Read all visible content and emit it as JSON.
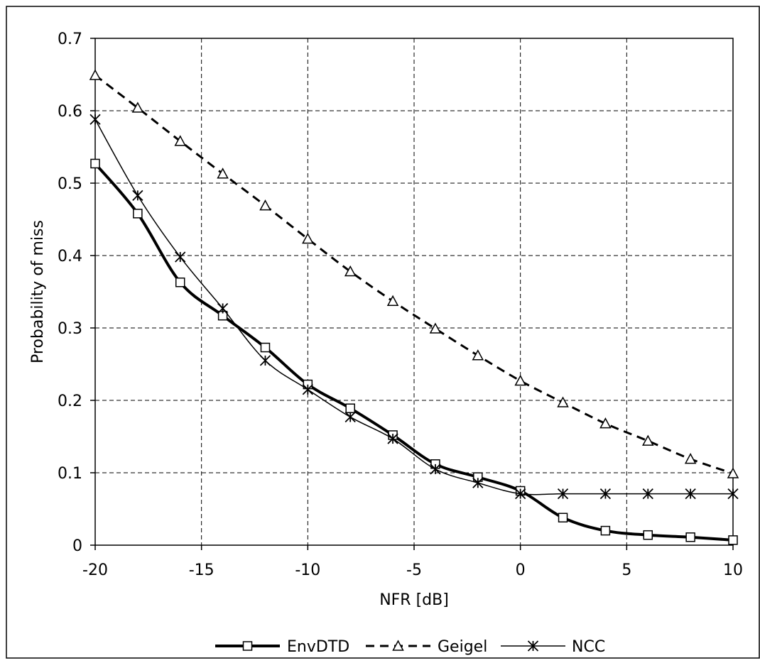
{
  "chart_data": {
    "type": "line",
    "title": "",
    "xlabel": "NFR [dB]",
    "ylabel": "Probability of miss",
    "xlim": [
      -20,
      10
    ],
    "ylim": [
      0,
      0.7
    ],
    "grid": true,
    "legend_position": "bottom",
    "xticks": [
      -20,
      -15,
      -10,
      -5,
      0,
      5,
      10
    ],
    "xtick_labels": [
      "-20",
      "-15",
      "-10",
      "-5",
      "0",
      "5",
      "10"
    ],
    "yticks": [
      0,
      0.1,
      0.2,
      0.3,
      0.4,
      0.5,
      0.6,
      0.7
    ],
    "ytick_labels": [
      "0",
      "0.1",
      "0.2",
      "0.3",
      "0.4",
      "0.5",
      "0.6",
      "0.7"
    ],
    "series": [
      {
        "name": "EnvDTD",
        "color": "#000000",
        "line": "solid-thick",
        "marker": "square",
        "x": [
          -20,
          -18,
          -16,
          -14,
          -12,
          -10,
          -8,
          -6,
          -4,
          -2,
          0,
          2,
          4,
          6,
          8,
          10
        ],
        "y": [
          0.527,
          0.458,
          0.363,
          0.317,
          0.273,
          0.222,
          0.189,
          0.152,
          0.112,
          0.094,
          0.075,
          0.038,
          0.02,
          0.014,
          0.011,
          0.007
        ]
      },
      {
        "name": "Geigel",
        "color": "#000000",
        "line": "dashed",
        "marker": "triangle",
        "x": [
          -20,
          -18,
          -16,
          -14,
          -12,
          -10,
          -8,
          -6,
          -4,
          -2,
          0,
          2,
          4,
          6,
          8,
          10
        ],
        "y": [
          0.649,
          0.604,
          0.558,
          0.513,
          0.469,
          0.423,
          0.378,
          0.337,
          0.299,
          0.262,
          0.227,
          0.197,
          0.168,
          0.144,
          0.119,
          0.099
        ]
      },
      {
        "name": "NCC",
        "color": "#000000",
        "line": "solid-thin",
        "marker": "asterisk",
        "x": [
          -20,
          -18,
          -16,
          -14,
          -12,
          -10,
          -8,
          -6,
          -4,
          -2,
          0,
          2,
          4,
          6,
          8,
          10
        ],
        "y": [
          0.588,
          0.483,
          0.398,
          0.327,
          0.255,
          0.215,
          0.177,
          0.147,
          0.105,
          0.086,
          0.071,
          0.071,
          0.071,
          0.071,
          0.071,
          0.071
        ]
      }
    ]
  }
}
